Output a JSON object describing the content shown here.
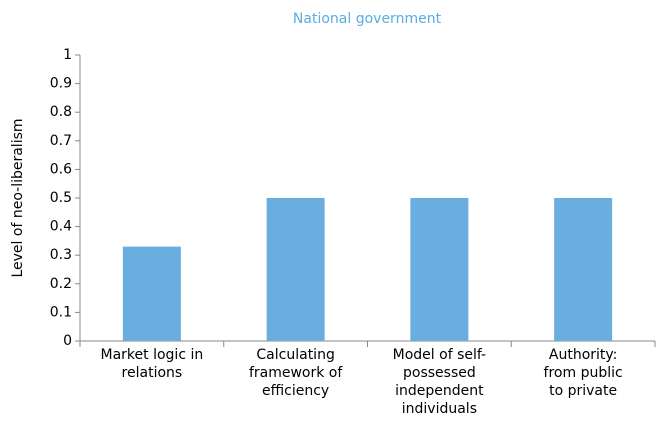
{
  "chart_data": {
    "type": "bar",
    "title": "National government",
    "ylabel": "Level of neo-liberalism",
    "categories": [
      "Market logic in relations",
      "Calculating framework of efficiency",
      "Model of self-possessed independent individuals",
      "Authority: from public to private"
    ],
    "values": [
      0.33,
      0.5,
      0.5,
      0.5
    ],
    "color": "#6aaee0",
    "title_color": "#5aade0",
    "ylim": [
      0,
      1
    ],
    "yticks": [
      0,
      0.1,
      0.2,
      0.3,
      0.4,
      0.5,
      0.6,
      0.7,
      0.8,
      0.9,
      1
    ],
    "grid": false
  }
}
